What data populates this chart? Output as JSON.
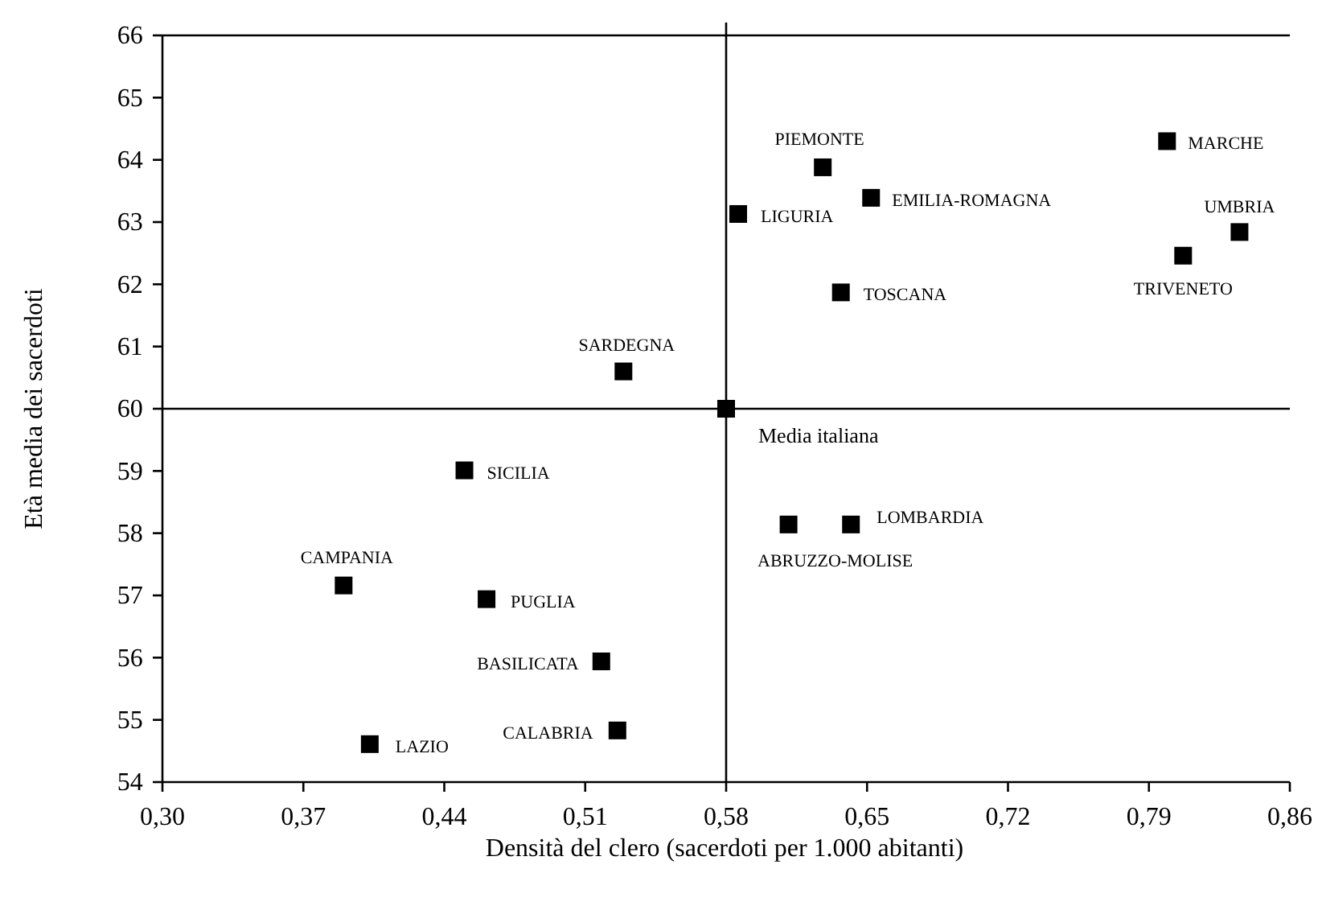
{
  "chart_data": {
    "type": "scatter",
    "xlabel": "Densità del clero (sacerdoti per 1.000 abitanti)",
    "ylabel": "Età media dei sacerdoti",
    "x": [
      0.628,
      0.652,
      0.586,
      0.637,
      0.799,
      0.835,
      0.807,
      0.529,
      0.45,
      0.39,
      0.461,
      0.518,
      0.526,
      0.403,
      0.611,
      0.642,
      0.58
    ],
    "values": [
      63.88,
      63.39,
      63.13,
      61.87,
      64.3,
      62.84,
      62.46,
      60.6,
      59.01,
      57.16,
      56.94,
      55.94,
      54.83,
      54.61,
      58.14,
      58.14,
      60.0
    ],
    "color": "#000000",
    "marker": "square",
    "xlim": [
      0.3,
      0.86
    ],
    "ylim": [
      54,
      66
    ],
    "xticks": [
      {
        "value": 0.3,
        "label": "0,30"
      },
      {
        "value": 0.37,
        "label": "0,37"
      },
      {
        "value": 0.44,
        "label": "0,44"
      },
      {
        "value": 0.51,
        "label": "0,51"
      },
      {
        "value": 0.58,
        "label": "0,58"
      },
      {
        "value": 0.65,
        "label": "0,65"
      },
      {
        "value": 0.72,
        "label": "0,72"
      },
      {
        "value": 0.79,
        "label": "0,79"
      },
      {
        "value": 0.86,
        "label": "0,86"
      }
    ],
    "yticks": [
      54,
      55,
      56,
      57,
      58,
      59,
      60,
      61,
      62,
      63,
      64,
      65,
      66
    ],
    "ref_lines": [
      {
        "axis": "x",
        "value": 0.58
      },
      {
        "axis": "y",
        "value": 60
      }
    ],
    "annotations": [
      {
        "text": "PIEMONTE",
        "x": 0.628,
        "y": 63.88
      },
      {
        "text": "EMILIA-ROMAGNA",
        "x": 0.652,
        "y": 63.39
      },
      {
        "text": "LIGURIA",
        "x": 0.586,
        "y": 63.13
      },
      {
        "text": "TOSCANA",
        "x": 0.637,
        "y": 61.87
      },
      {
        "text": "MARCHE",
        "x": 0.799,
        "y": 64.3
      },
      {
        "text": "UMBRIA",
        "x": 0.835,
        "y": 62.84
      },
      {
        "text": "TRIVENETO",
        "x": 0.807,
        "y": 62.46
      },
      {
        "text": "SARDEGNA",
        "x": 0.529,
        "y": 60.6
      },
      {
        "text": "SICILIA",
        "x": 0.45,
        "y": 59.01
      },
      {
        "text": "CAMPANIA",
        "x": 0.39,
        "y": 57.16
      },
      {
        "text": "PUGLIA",
        "x": 0.461,
        "y": 56.94
      },
      {
        "text": "BASILICATA",
        "x": 0.518,
        "y": 55.94
      },
      {
        "text": "CALABRIA",
        "x": 0.526,
        "y": 54.83
      },
      {
        "text": "LAZIO",
        "x": 0.403,
        "y": 54.61
      },
      {
        "text": "ABRUZZO-MOLISE",
        "x": 0.611,
        "y": 58.14
      },
      {
        "text": "LOMBARDIA",
        "x": 0.642,
        "y": 58.14
      },
      {
        "text": "Media italiana",
        "x": 0.58,
        "y": 60.0
      }
    ]
  }
}
